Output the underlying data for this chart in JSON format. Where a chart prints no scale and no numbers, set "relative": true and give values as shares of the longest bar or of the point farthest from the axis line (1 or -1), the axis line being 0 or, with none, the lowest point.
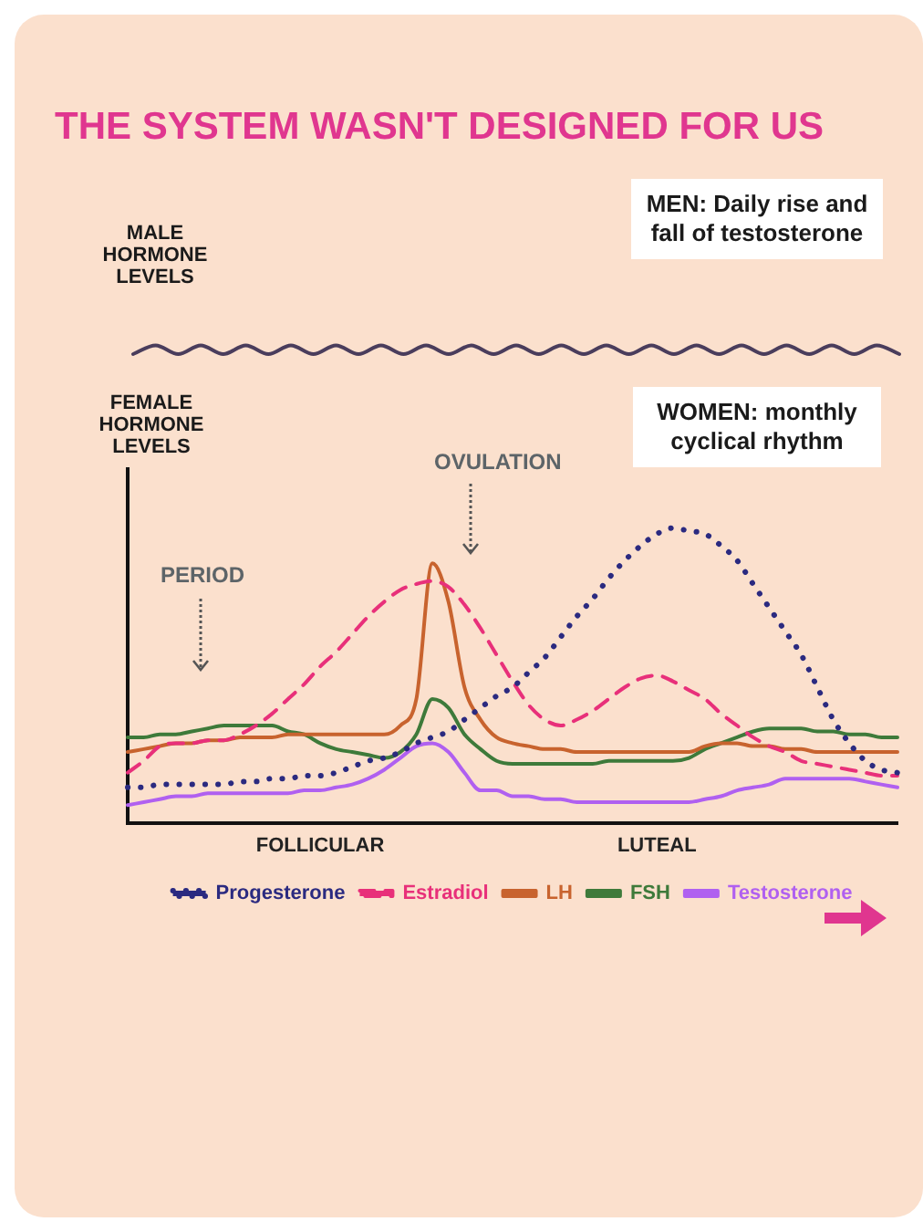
{
  "chart_data": [
    {
      "type": "line",
      "title": "THE SYSTEM WASN'T DESIGNED FOR US",
      "ylabel": "MALE HORMONE LEVELS",
      "annotations": [
        "MEN: Daily rise and fall of testosterone"
      ],
      "relative": true,
      "legend": false,
      "marker": "none",
      "tick_labels": false,
      "categories": [
        null,
        null,
        null,
        null,
        null,
        null,
        null,
        null,
        null,
        null,
        null,
        null,
        null,
        null,
        null,
        null,
        null,
        null,
        null,
        null,
        null,
        null,
        null,
        null,
        null,
        null,
        null,
        null,
        null,
        null,
        null,
        null,
        null,
        null,
        null
      ],
      "series": [
        {
          "color": "#4a3d5c",
          "values": [
            0,
            1,
            0,
            1,
            0,
            1,
            0,
            1,
            0,
            1,
            0,
            1,
            0,
            1,
            0,
            1,
            0,
            1,
            0,
            1,
            0,
            1,
            0,
            1,
            0,
            1,
            0,
            1,
            0,
            1,
            0,
            1,
            0,
            1,
            0
          ]
        }
      ]
    },
    {
      "type": "line",
      "ylabel": "FEMALE HORMONE LEVELS",
      "annotations": [
        "WOMEN: monthly cyclical rhythm",
        "OVULATION",
        "PERIOD"
      ],
      "relative": true,
      "legend": "bottom",
      "marker": "none",
      "tick_labels": "x",
      "categories": [
        null,
        null,
        null,
        null,
        null,
        null,
        null,
        null,
        null,
        null,
        null,
        null,
        "FOLLICULAR",
        null,
        null,
        null,
        null,
        null,
        null,
        null,
        null,
        null,
        null,
        null,
        null,
        null,
        null,
        null,
        null,
        null,
        null,
        null,
        null,
        "LUTEAL",
        null,
        null,
        null,
        null,
        null,
        null,
        null,
        null,
        null,
        null,
        null,
        null,
        null,
        null,
        null
      ],
      "series": [
        {
          "name": "Progesterone",
          "color": "#2b2a80",
          "line_style": "dotted",
          "values": [
            0.12,
            0.12,
            0.13,
            0.13,
            0.13,
            0.13,
            0.13,
            0.14,
            0.14,
            0.15,
            0.15,
            0.16,
            0.16,
            0.17,
            0.19,
            0.21,
            0.22,
            0.24,
            0.27,
            0.29,
            0.31,
            0.35,
            0.39,
            0.43,
            0.46,
            0.51,
            0.56,
            0.63,
            0.7,
            0.76,
            0.83,
            0.89,
            0.94,
            0.98,
            1,
            0.99,
            0.98,
            0.94,
            0.89,
            0.81,
            0.73,
            0.65,
            0.57,
            0.46,
            0.35,
            0.27,
            0.21,
            0.18,
            0.17
          ]
        },
        {
          "name": "Estradiol",
          "color": "#e8307a",
          "line_style": "dashed",
          "values": [
            0.17,
            0.21,
            0.26,
            0.27,
            0.27,
            0.28,
            0.28,
            0.3,
            0.33,
            0.37,
            0.42,
            0.47,
            0.53,
            0.58,
            0.64,
            0.7,
            0.75,
            0.79,
            0.81,
            0.82,
            0.8,
            0.74,
            0.66,
            0.57,
            0.48,
            0.4,
            0.35,
            0.33,
            0.35,
            0.38,
            0.42,
            0.46,
            0.49,
            0.5,
            0.48,
            0.45,
            0.42,
            0.37,
            0.33,
            0.29,
            0.26,
            0.24,
            0.21,
            0.2,
            0.19,
            0.18,
            0.17,
            0.16,
            0.16
          ]
        },
        {
          "name": "LH",
          "color": "#c8632e",
          "line_style": "solid",
          "values": [
            0.24,
            0.25,
            0.26,
            0.27,
            0.27,
            0.28,
            0.28,
            0.29,
            0.29,
            0.29,
            0.3,
            0.3,
            0.3,
            0.3,
            0.3,
            0.3,
            0.3,
            0.33,
            0.42,
            0.88,
            0.75,
            0.46,
            0.35,
            0.29,
            0.27,
            0.26,
            0.25,
            0.25,
            0.24,
            0.24,
            0.24,
            0.24,
            0.24,
            0.24,
            0.24,
            0.24,
            0.26,
            0.27,
            0.27,
            0.26,
            0.26,
            0.25,
            0.25,
            0.24,
            0.24,
            0.24,
            0.24,
            0.24,
            0.24
          ]
        },
        {
          "name": "FSH",
          "color": "#3e7a3a",
          "line_style": "solid",
          "values": [
            0.29,
            0.29,
            0.3,
            0.3,
            0.31,
            0.32,
            0.33,
            0.33,
            0.33,
            0.33,
            0.31,
            0.3,
            0.27,
            0.25,
            0.24,
            0.23,
            0.22,
            0.24,
            0.3,
            0.42,
            0.39,
            0.3,
            0.25,
            0.21,
            0.2,
            0.2,
            0.2,
            0.2,
            0.2,
            0.2,
            0.21,
            0.21,
            0.21,
            0.21,
            0.21,
            0.22,
            0.25,
            0.27,
            0.29,
            0.31,
            0.32,
            0.32,
            0.32,
            0.31,
            0.31,
            0.3,
            0.3,
            0.29,
            0.29
          ]
        },
        {
          "name": "Testosterone",
          "color": "#b060f0",
          "line_style": "solid",
          "values": [
            0.06,
            0.07,
            0.08,
            0.09,
            0.09,
            0.1,
            0.1,
            0.1,
            0.1,
            0.1,
            0.1,
            0.11,
            0.11,
            0.12,
            0.13,
            0.15,
            0.18,
            0.22,
            0.26,
            0.27,
            0.24,
            0.17,
            0.11,
            0.11,
            0.09,
            0.09,
            0.08,
            0.08,
            0.07,
            0.07,
            0.07,
            0.07,
            0.07,
            0.07,
            0.07,
            0.07,
            0.08,
            0.09,
            0.11,
            0.12,
            0.13,
            0.15,
            0.15,
            0.15,
            0.15,
            0.15,
            0.14,
            0.13,
            0.12
          ]
        }
      ]
    }
  ]
}
